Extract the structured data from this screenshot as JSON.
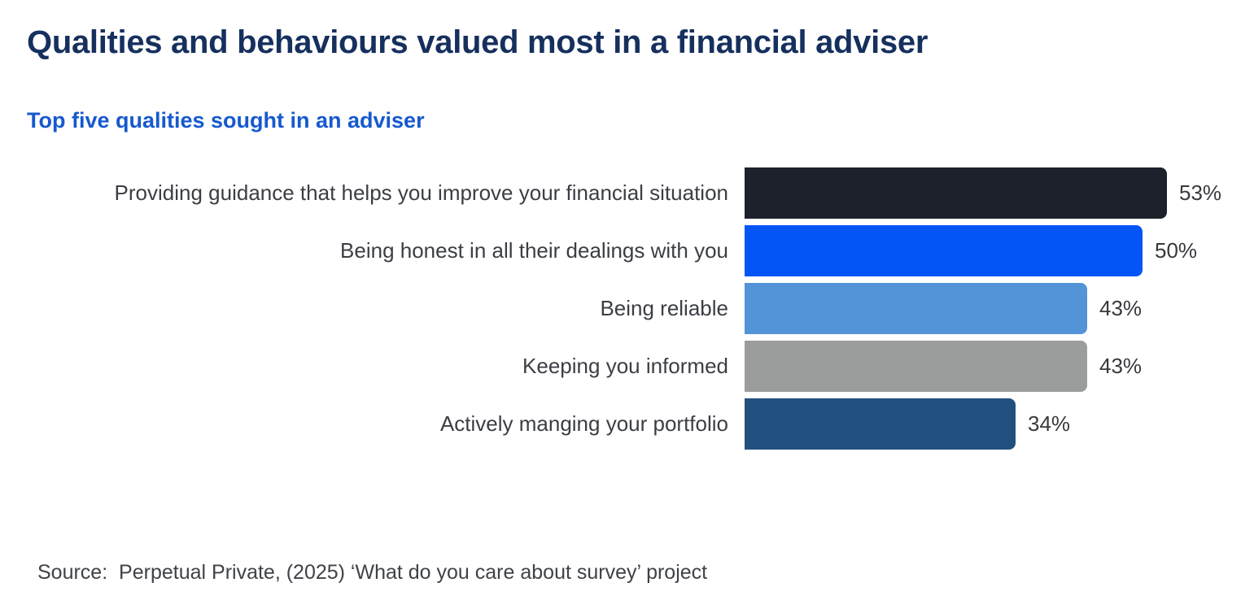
{
  "page": {
    "title": "Qualities and behaviours valued most in a financial adviser",
    "subtitle": "Top five qualities sought in an adviser",
    "source": "Source:  Perpetual Private, (2025) ‘What do you care about survey’ project"
  },
  "colors": {
    "background": "#ffffff",
    "title_text": "#16305e",
    "subtitle_text": "#1659cf",
    "label_text": "#3b3e44",
    "value_text": "#37393d",
    "source_text": "#3f4248"
  },
  "chart_data": {
    "type": "bar",
    "orientation": "horizontal",
    "title": "Qualities and behaviours valued most in a financial adviser",
    "subtitle": "Top five qualities sought in an adviser",
    "categories": [
      "Providing guidance that helps you improve your financial situation",
      "Being honest in all their dealings with you",
      "Being reliable",
      "Keeping you informed",
      "Actively manging your portfolio"
    ],
    "values": [
      53,
      50,
      43,
      43,
      34
    ],
    "value_labels": [
      "53%",
      "50%",
      "43%",
      "43%",
      "34%"
    ],
    "bar_colors": [
      "#1d212b",
      "#0355f5",
      "#5393d8",
      "#9b9c9c",
      "#21507e"
    ],
    "xlabel": "",
    "ylabel": "",
    "xlim": [
      0,
      55
    ],
    "grid": false,
    "legend": false,
    "value_label_position": "right-of-bar",
    "source": "Source:  Perpetual Private, (2025) ‘What do you care about survey’ project"
  }
}
